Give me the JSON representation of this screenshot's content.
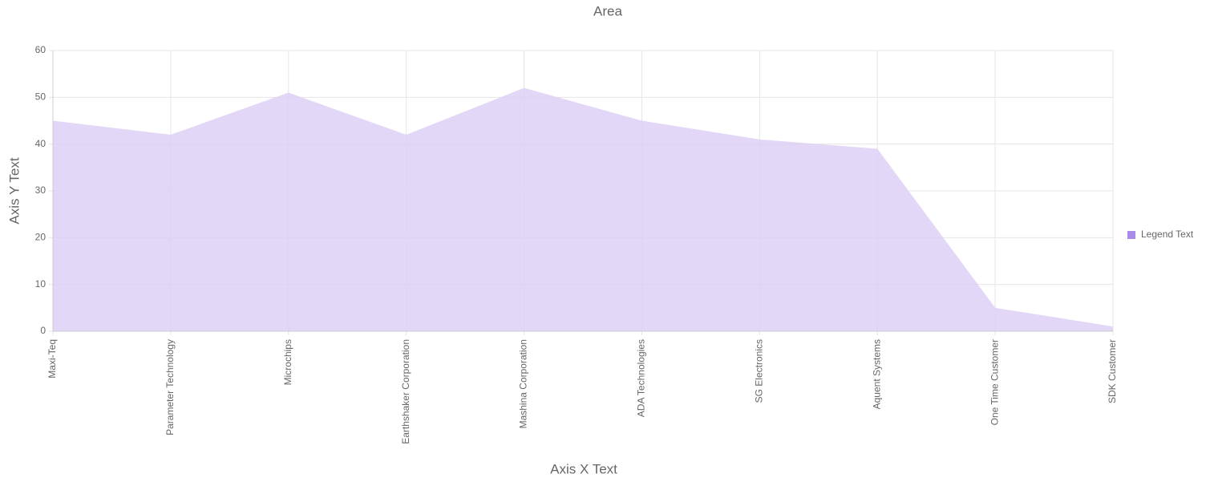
{
  "chart_data": {
    "type": "area",
    "title": "Area",
    "x_label": "Axis X Text",
    "y_label": "Axis Y Text",
    "categories": [
      "Maxi-Teq",
      "Parameter Technology",
      "Microchips",
      "Earthshaker Corporation",
      "Mashina Corporation",
      "ADA Technologies",
      "SG Electronics",
      "Aquent Systems",
      "One Time Customer",
      "SDK Customer"
    ],
    "series": [
      {
        "name": "Legend Text",
        "color": "#ddd0f5",
        "legend_color": "#a98ce8",
        "values": [
          45,
          42,
          51,
          42,
          52,
          45,
          41,
          39,
          5,
          1
        ]
      }
    ],
    "ylim": [
      0,
      60
    ],
    "yticks": [
      0,
      10,
      20,
      30,
      40,
      50,
      60
    ],
    "grid": true,
    "legend": "right"
  }
}
